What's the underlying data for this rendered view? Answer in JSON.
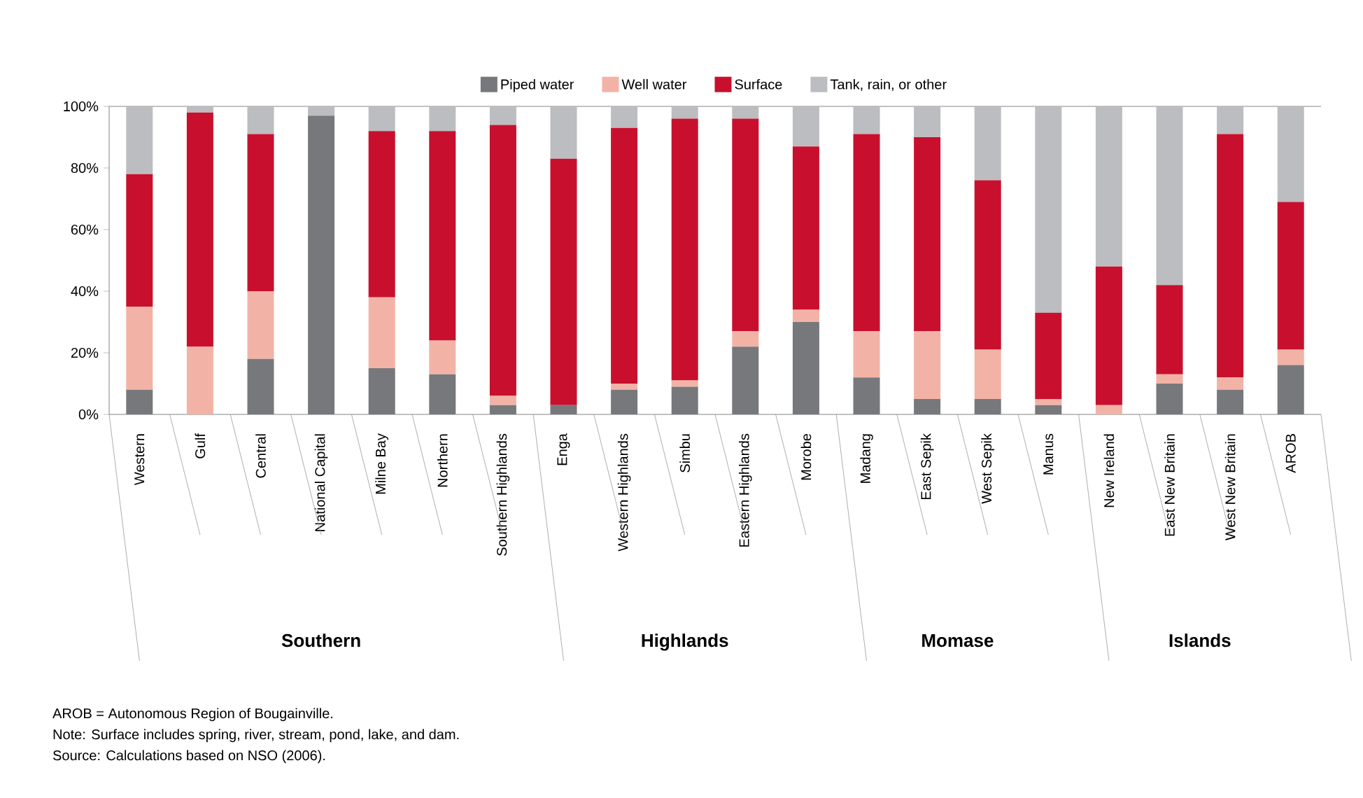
{
  "chart_data": {
    "type": "bar",
    "stacked": true,
    "legend": "top",
    "grid": false,
    "categories": [
      "Western",
      "Gulf",
      "Central",
      "National Capital",
      "Milne Bay",
      "Northern",
      "Southern Highlands",
      "Enga",
      "Western Highlands",
      "Simbu",
      "Eastern Highlands",
      "Morobe",
      "Madang",
      "East Sepik",
      "West Sepik",
      "Manus",
      "New Ireland",
      "East New Britain",
      "West New Britain",
      "AROB"
    ],
    "series": [
      {
        "name": "Piped water",
        "color": "#77787b",
        "values": [
          8,
          0,
          18,
          97,
          15,
          13,
          3,
          3,
          8,
          9,
          22,
          30,
          12,
          5,
          5,
          3,
          0,
          10,
          8,
          16
        ]
      },
      {
        "name": "Well water",
        "color": "#f2b3a6",
        "values": [
          27,
          22,
          22,
          0,
          23,
          11,
          3,
          0,
          2,
          2,
          5,
          4,
          15,
          22,
          16,
          2,
          3,
          3,
          4,
          5
        ]
      },
      {
        "name": "Surface",
        "color": "#c8102e",
        "values": [
          43,
          76,
          51,
          0,
          54,
          68,
          88,
          80,
          83,
          85,
          69,
          53,
          64,
          63,
          55,
          28,
          45,
          29,
          79,
          48
        ]
      },
      {
        "name": "Tank, rain, or other",
        "color": "#bcbdc0",
        "values": [
          22,
          2,
          9,
          3,
          8,
          8,
          6,
          17,
          7,
          4,
          4,
          13,
          9,
          10,
          24,
          67,
          52,
          58,
          9,
          31
        ]
      }
    ],
    "ylim": [
      0,
      100
    ],
    "yticks": [
      {
        "value": 0,
        "label": "0%"
      },
      {
        "value": 20,
        "label": "20%"
      },
      {
        "value": 40,
        "label": "40%"
      },
      {
        "value": 60,
        "label": "60%"
      },
      {
        "value": 80,
        "label": "80%"
      },
      {
        "value": 100,
        "label": "100%"
      }
    ],
    "annotations": [
      "Southern",
      "Highlands",
      "Momase",
      "Islands",
      "AROB = Autonomous Region of Bougainville.",
      "Note: Surface includes spring, river, stream, pond, lake, and dam.",
      "Source: Calculations based on NSO (2006)."
    ]
  }
}
